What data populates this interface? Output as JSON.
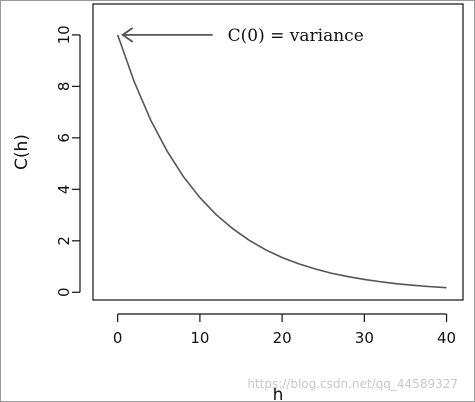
{
  "chart_data": {
    "type": "line",
    "xlabel": "h",
    "ylabel": "C(h)",
    "xlim": [
      -3,
      42
    ],
    "ylim": [
      -0.3,
      11.2
    ],
    "xticks": [
      0,
      10,
      20,
      30,
      40
    ],
    "yticks": [
      0,
      2,
      4,
      6,
      8,
      10
    ],
    "grid": false,
    "series": [
      {
        "x": [
          0,
          2,
          4,
          6,
          8,
          10,
          12,
          14,
          16,
          18,
          20,
          22,
          24,
          26,
          28,
          30,
          32,
          34,
          36,
          38,
          40
        ],
        "y": [
          10.0,
          8.19,
          6.7,
          5.49,
          4.49,
          3.68,
          3.01,
          2.47,
          2.02,
          1.65,
          1.35,
          1.11,
          0.91,
          0.74,
          0.61,
          0.5,
          0.41,
          0.33,
          0.27,
          0.22,
          0.18
        ]
      }
    ],
    "annotation": {
      "text": "C(0) = variance",
      "target_x": 0,
      "target_y": 10
    }
  },
  "watermark": "https://blog.csdn.net/qq_44589327",
  "colors": {
    "curve": "#555555",
    "arrow": "#555555",
    "axes": "#111111"
  }
}
